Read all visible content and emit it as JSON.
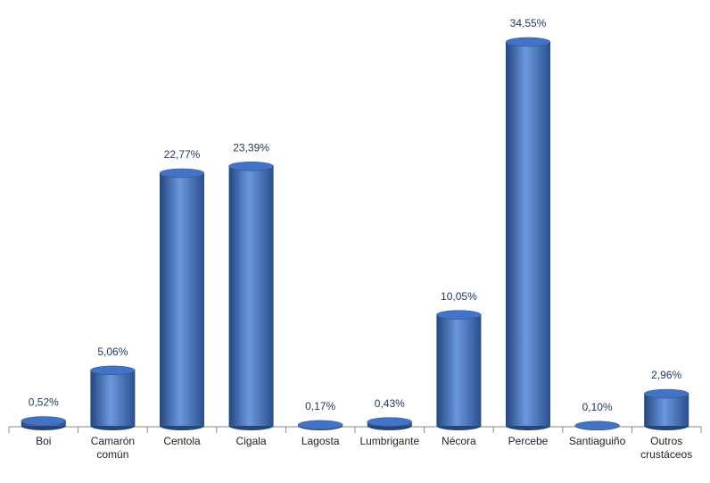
{
  "chart_data": {
    "type": "bar",
    "categories": [
      "Boi",
      "Camarón común",
      "Centola",
      "Cigala",
      "Lagosta",
      "Lumbrigante",
      "Nécora",
      "Percebe",
      "Santiaguiño",
      "Outros crustáceos"
    ],
    "values": [
      0.52,
      5.06,
      22.77,
      23.39,
      0.17,
      0.43,
      10.05,
      34.55,
      0.1,
      2.96
    ],
    "value_labels": [
      "0,52%",
      "5,06%",
      "22,77%",
      "23,39%",
      "0,17%",
      "0,43%",
      "10,05%",
      "34,55%",
      "0,10%",
      "2,96%"
    ],
    "color": "#4472c4"
  }
}
